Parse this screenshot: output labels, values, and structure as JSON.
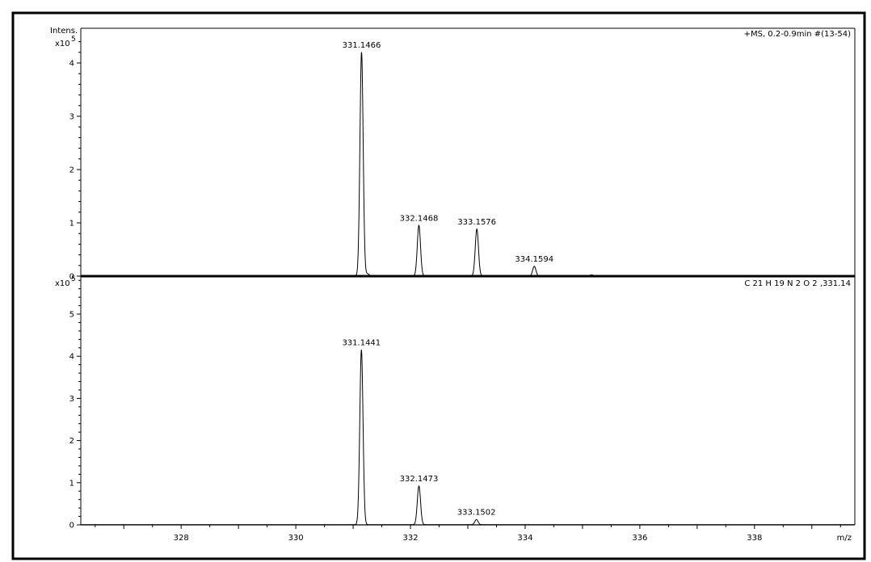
{
  "chart_data": [
    {
      "type": "line",
      "panel": "top",
      "corner_label": "+MS, 0.2-0.9min #(13-54)",
      "ylabel": "Intens.",
      "yscale_label": "x10",
      "yscale_exp": "5",
      "xlim": [
        326.25,
        339.75
      ],
      "ylim": [
        0,
        4.5
      ],
      "yticks": [
        0,
        1,
        2,
        3,
        4
      ],
      "ytick_labels": [
        "0",
        "1",
        "2",
        "3",
        "4"
      ],
      "peaks": [
        {
          "mz": 331.1466,
          "intensity": 4.2,
          "label": "331.1466"
        },
        {
          "mz": 332.1468,
          "intensity": 0.95,
          "label": "332.1468"
        },
        {
          "mz": 333.1576,
          "intensity": 0.88,
          "label": "333.1576"
        },
        {
          "mz": 334.1594,
          "intensity": 0.18,
          "label": "334.1594"
        },
        {
          "mz": 331.25,
          "intensity": 0.04,
          "label": ""
        },
        {
          "mz": 335.16,
          "intensity": 0.02,
          "label": ""
        }
      ]
    },
    {
      "type": "line",
      "panel": "bottom",
      "corner_label": "C 21 H 19 N 2 O 2 ,331.14",
      "yscale_label": "x10",
      "yscale_exp": "5",
      "xlim": [
        326.25,
        339.75
      ],
      "ylim": [
        0,
        5.9
      ],
      "yticks": [
        0,
        1,
        2,
        3,
        4,
        5
      ],
      "ytick_labels": [
        "0",
        "1",
        "2",
        "3",
        "4",
        "5"
      ],
      "peaks": [
        {
          "mz": 331.1441,
          "intensity": 4.15,
          "label": "331.1441"
        },
        {
          "mz": 332.1473,
          "intensity": 0.92,
          "label": "332.1473"
        },
        {
          "mz": 333.1502,
          "intensity": 0.12,
          "label": "333.1502"
        }
      ],
      "xlabel": "m/z",
      "xticks": [
        328,
        330,
        332,
        334,
        336,
        338
      ],
      "xtick_labels": [
        "328",
        "330",
        "332",
        "334",
        "336",
        "338"
      ]
    }
  ]
}
